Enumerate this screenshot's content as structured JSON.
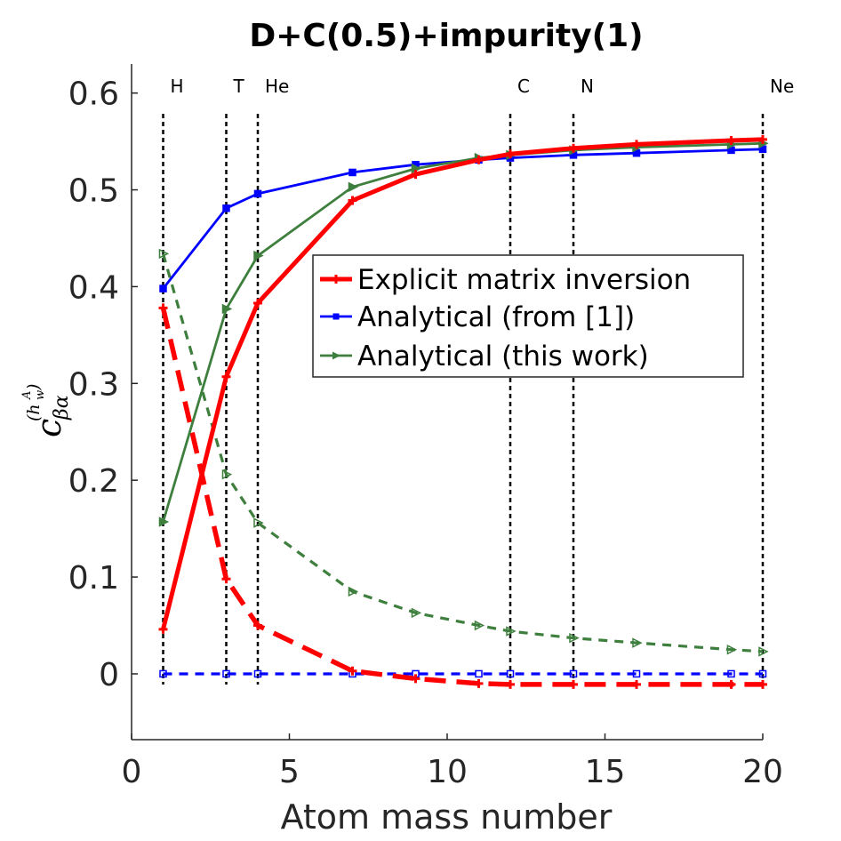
{
  "chart_data": {
    "type": "line",
    "title": "D+C(0.5)+impurity(1)",
    "xlabel": "Atom mass number",
    "ylabel": {
      "main": "c",
      "sub": "βα",
      "sup": "(h",
      "sup_sub": "w",
      "sup_sup": "A",
      "close": ")"
    },
    "xlim": [
      0,
      20
    ],
    "ylim": [
      -0.068,
      0.63
    ],
    "xticks": [
      0,
      5,
      10,
      15,
      20
    ],
    "yticks": [
      0,
      0.1,
      0.2,
      0.3,
      0.4,
      0.5,
      0.6
    ],
    "xtick_labels": [
      "0",
      "5",
      "10",
      "15",
      "20"
    ],
    "ytick_labels": [
      "0",
      "0.1",
      "0.2",
      "0.3",
      "0.4",
      "0.5",
      "0.6"
    ],
    "x": [
      1,
      3,
      4,
      7,
      9,
      11,
      12,
      14,
      16,
      19,
      20
    ],
    "element_markers": [
      {
        "label": "H",
        "x": 1
      },
      {
        "label": "T",
        "x": 3
      },
      {
        "label": "He",
        "x": 4
      },
      {
        "label": "C",
        "x": 12
      },
      {
        "label": "N",
        "x": 14
      },
      {
        "label": "Ne",
        "x": 20
      }
    ],
    "series": [
      {
        "name": "Explicit matrix inversion",
        "color": "#ff0000",
        "style": "solid",
        "values": [
          0.046,
          0.307,
          0.383,
          0.489,
          0.516,
          0.531,
          0.537,
          0.543,
          0.547,
          0.551,
          0.552
        ]
      },
      {
        "name": "Analytical (from [1])",
        "color": "#0000ff",
        "style": "solid",
        "values": [
          0.398,
          0.481,
          0.496,
          0.518,
          0.526,
          0.531,
          0.533,
          0.536,
          0.538,
          0.541,
          0.542
        ]
      },
      {
        "name": "Analytical (this work)",
        "color": "#3e7f3e",
        "style": "solid",
        "values": [
          0.157,
          0.377,
          0.432,
          0.503,
          0.522,
          0.533,
          0.536,
          0.541,
          0.544,
          0.547,
          0.548
        ]
      },
      {
        "name": "Explicit matrix inversion (dashed)",
        "color": "#ff0000",
        "style": "dashed",
        "in_legend": false,
        "values": [
          0.378,
          0.098,
          0.05,
          0.003,
          -0.005,
          -0.01,
          -0.011,
          -0.011,
          -0.011,
          -0.011,
          -0.011
        ]
      },
      {
        "name": "Analytical (from [1]) (dashed)",
        "color": "#0000ff",
        "style": "dashed",
        "in_legend": false,
        "values": [
          0,
          0,
          0,
          0,
          0,
          0,
          0,
          0,
          0,
          0,
          0
        ]
      },
      {
        "name": "Analytical (this work) (dashed)",
        "color": "#3e7f3e",
        "style": "dashed",
        "in_legend": false,
        "values": [
          0.434,
          0.206,
          0.156,
          0.085,
          0.063,
          0.05,
          0.044,
          0.037,
          0.032,
          0.025,
          0.023
        ]
      }
    ],
    "legend": {
      "position": "center-right",
      "entries": [
        "Explicit matrix inversion",
        "Analytical (from [1])",
        "Analytical (this work)"
      ]
    }
  }
}
